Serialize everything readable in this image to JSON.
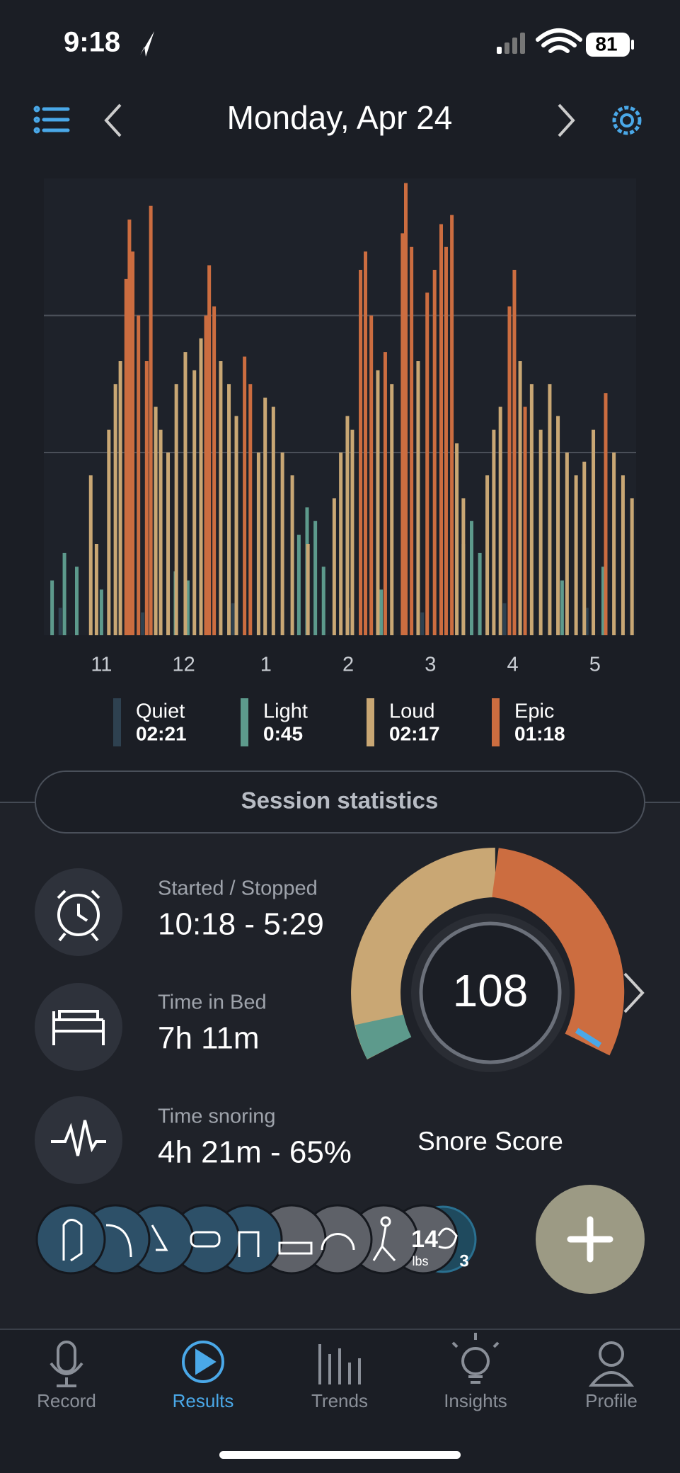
{
  "status_bar": {
    "time": "9:18",
    "battery": "81"
  },
  "header": {
    "date": "Monday, Apr 24"
  },
  "chart_data": {
    "type": "bar",
    "xlim": [
      22.3,
      29.5
    ],
    "xticks": [
      {
        "value": 23,
        "label": "11"
      },
      {
        "value": 24,
        "label": "12"
      },
      {
        "value": 25,
        "label": "1"
      },
      {
        "value": 26,
        "label": "2"
      },
      {
        "value": 27,
        "label": "3"
      },
      {
        "value": 28,
        "label": "4"
      },
      {
        "value": 29,
        "label": "5"
      }
    ],
    "ylim": [
      0,
      100
    ],
    "yticks": [
      40,
      70
    ],
    "grid": true,
    "series": [
      {
        "name": "Quiet",
        "total": "02:21",
        "color": "#2e4150",
        "x": [
          22.5,
          23.5,
          24.6,
          25.2,
          26.0,
          26.9,
          27.9,
          28.9
        ],
        "values": [
          6,
          5,
          7,
          5,
          6,
          5,
          7,
          6
        ]
      },
      {
        "name": "Light",
        "total": "0:45",
        "color": "#5d9a8c",
        "x": [
          22.4,
          22.55,
          22.7,
          23.0,
          23.9,
          24.05,
          25.4,
          25.5,
          25.6,
          25.7,
          26.4,
          27.4,
          27.5,
          27.6,
          28.6,
          29.1
        ],
        "values": [
          12,
          18,
          15,
          10,
          14,
          12,
          22,
          28,
          25,
          15,
          10,
          20,
          25,
          18,
          12,
          15
        ]
      },
      {
        "name": "Loud",
        "total": "02:17",
        "color": "#c9a774",
        "x": [
          22.87,
          22.94,
          23.09,
          23.17,
          23.23,
          23.66,
          23.72,
          23.81,
          23.91,
          24.02,
          24.13,
          24.21,
          24.45,
          24.55,
          24.64,
          24.91,
          24.99,
          25.09,
          25.2,
          25.32,
          25.51,
          25.83,
          25.91,
          25.99,
          26.05,
          26.36,
          26.53,
          26.85,
          27.32,
          27.4,
          27.69,
          27.77,
          27.85,
          28.09,
          28.23,
          28.34,
          28.45,
          28.55,
          28.66,
          28.77,
          28.87,
          28.98,
          29.23,
          29.34,
          29.45
        ],
        "values": [
          35,
          20,
          45,
          55,
          60,
          50,
          45,
          40,
          55,
          62,
          58,
          65,
          60,
          55,
          48,
          40,
          52,
          50,
          40,
          35,
          20,
          30,
          40,
          48,
          45,
          58,
          55,
          60,
          42,
          30,
          35,
          45,
          50,
          60,
          55,
          45,
          55,
          48,
          40,
          35,
          38,
          45,
          40,
          35,
          30
        ]
      },
      {
        "name": "Epic",
        "total": "01:18",
        "color": "#cc6d40",
        "x": [
          23.3,
          23.34,
          23.38,
          23.45,
          23.55,
          23.6,
          24.27,
          24.31,
          24.37,
          24.74,
          24.81,
          26.15,
          26.21,
          26.28,
          26.45,
          26.66,
          26.7,
          26.77,
          26.96,
          27.05,
          27.13,
          27.19,
          27.26,
          27.96,
          28.02,
          28.15,
          29.13
        ],
        "values": [
          78,
          91,
          84,
          70,
          60,
          94,
          70,
          81,
          72,
          61,
          55,
          80,
          84,
          70,
          62,
          88,
          99,
          85,
          75,
          80,
          90,
          85,
          92,
          72,
          80,
          50,
          53
        ]
      }
    ]
  },
  "session_statistics": {
    "title": "Session statistics",
    "rows": [
      {
        "label": "Started / Stopped",
        "value": "10:18 - 5:29"
      },
      {
        "label": "Time in Bed",
        "value": "7h 11m"
      },
      {
        "label": "Time snoring",
        "value": "4h 21m - 65%"
      }
    ]
  },
  "snore_score": {
    "value": "108",
    "label": "Snore Score"
  },
  "remedies": {
    "weight": "14",
    "weight_unit": "lbs",
    "count": "3"
  },
  "tabs": [
    "Record",
    "Results",
    "Trends",
    "Insights",
    "Profile"
  ]
}
